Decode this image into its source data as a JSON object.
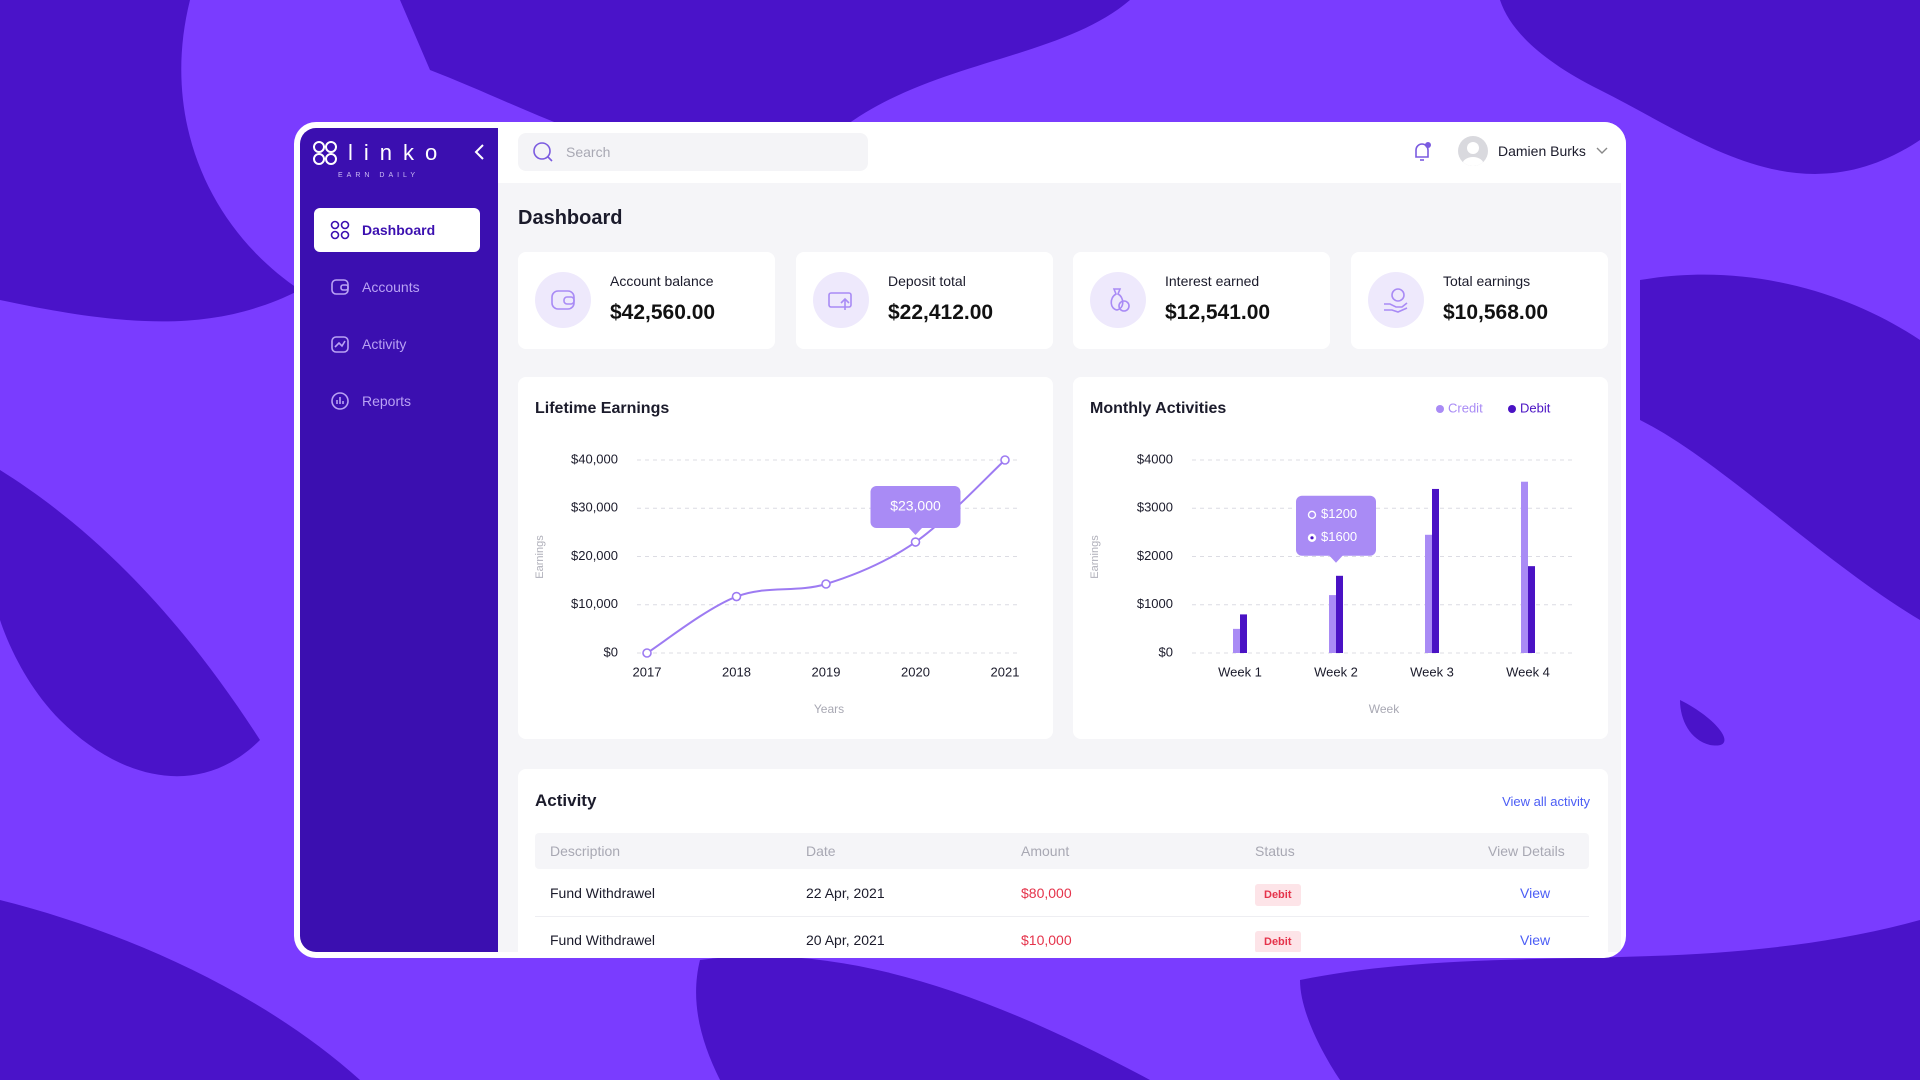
{
  "brand": {
    "name": "linko",
    "tagline": "EARN DAILY"
  },
  "nav": [
    "Dashboard",
    "Accounts",
    "Activity",
    "Reports"
  ],
  "search_placeholder": "Search",
  "user": "Damien Burks",
  "page_title": "Dashboard",
  "stats": [
    {
      "label": "Account balance",
      "value": "$42,560.00"
    },
    {
      "label": "Deposit total",
      "value": "$22,412.00"
    },
    {
      "label": "Interest earned",
      "value": "$12,541.00"
    },
    {
      "label": "Total earnings",
      "value": "$10,568.00"
    }
  ],
  "chart_data": [
    {
      "type": "line",
      "title": "Lifetime Earnings",
      "x": [
        2017,
        2018,
        2019,
        2020,
        2021
      ],
      "xlim": [
        2017,
        2021
      ],
      "xticks": [
        2017,
        2018,
        2019,
        2020,
        2021
      ],
      "values": [
        0,
        11700,
        14300,
        23000,
        40000
      ],
      "value_labels": [
        null,
        null,
        null,
        "$23,000",
        null
      ],
      "color": "#9d7bf2",
      "ylim": [
        0,
        40000
      ],
      "yticks": [
        {
          "value": 0,
          "label": "$0"
        },
        {
          "value": 10000,
          "label": "$10,000"
        },
        {
          "value": 20000,
          "label": "$20,000"
        },
        {
          "value": 30000,
          "label": "$30,000"
        },
        {
          "value": 40000,
          "label": "$40,000"
        }
      ],
      "xlabel": "Years",
      "ylabel": "Earnings",
      "grid": true
    },
    {
      "type": "bar",
      "title": "Monthly Activities",
      "categories": [
        "Week 1",
        "Week 2",
        "Week 3",
        "Week 4"
      ],
      "series": [
        {
          "name": "Credit",
          "color": "#a98bf5",
          "values": [
            500,
            1200,
            2450,
            3550
          ],
          "value_labels": [
            null,
            "$1200",
            null,
            null
          ]
        },
        {
          "name": "Debit",
          "color": "#4a12c4",
          "values": [
            800,
            1600,
            3400,
            1800
          ],
          "value_labels": [
            null,
            "$1600",
            null,
            null
          ]
        }
      ],
      "ylim": [
        0,
        4000
      ],
      "yticks": [
        {
          "value": 0,
          "label": "$0"
        },
        {
          "value": 1000,
          "label": "$1000"
        },
        {
          "value": 2000,
          "label": "$2000"
        },
        {
          "value": 3000,
          "label": "$3000"
        },
        {
          "value": 4000,
          "label": "$4000"
        }
      ],
      "xlabel": "Week",
      "ylabel": "Earnings",
      "legend": "top-right",
      "grid": true
    }
  ],
  "activity": {
    "title": "Activity",
    "link": "View all activity",
    "columns": [
      "Description",
      "Date",
      "Amount",
      "Status",
      "View Details"
    ],
    "rows": [
      [
        "Fund Withdrawel",
        "22 Apr, 2021",
        "$80,000",
        "Debit",
        "View"
      ],
      [
        "Fund Withdrawel",
        "20 Apr, 2021",
        "$10,000",
        "Debit",
        "View"
      ]
    ]
  }
}
